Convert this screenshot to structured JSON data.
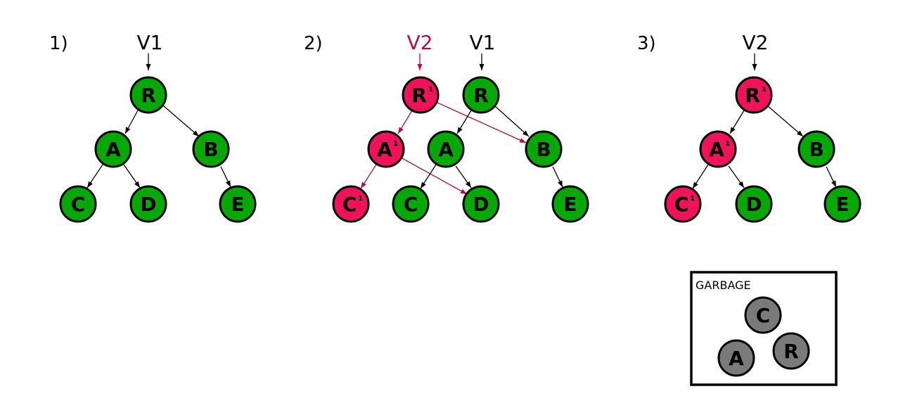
{
  "colors": {
    "green": "#06a806",
    "red": "#f0125b",
    "gray": "#7a7a7a",
    "stroke": "#000000",
    "v2_label": "#b0104a",
    "red_edge": "#b0104a"
  },
  "panels": [
    {
      "step": "1)",
      "versions": [
        {
          "label": "V1",
          "color": "black",
          "target": "R"
        }
      ],
      "nodes": [
        {
          "id": "R",
          "label": "R",
          "color": "green"
        },
        {
          "id": "A",
          "label": "A",
          "color": "green"
        },
        {
          "id": "B",
          "label": "B",
          "color": "green"
        },
        {
          "id": "C",
          "label": "C",
          "color": "green"
        },
        {
          "id": "D",
          "label": "D",
          "color": "green"
        },
        {
          "id": "E",
          "label": "E",
          "color": "green"
        }
      ],
      "edges": [
        {
          "from": "R",
          "to": "A",
          "color": "black"
        },
        {
          "from": "R",
          "to": "B",
          "color": "black"
        },
        {
          "from": "A",
          "to": "C",
          "color": "black"
        },
        {
          "from": "A",
          "to": "D",
          "color": "black"
        },
        {
          "from": "B",
          "to": "E",
          "color": "black"
        }
      ]
    },
    {
      "step": "2)",
      "versions": [
        {
          "label": "V2",
          "color": "red",
          "target": "R1"
        },
        {
          "label": "V1",
          "color": "black",
          "target": "R"
        }
      ],
      "nodes": [
        {
          "id": "R1",
          "label": "R",
          "sup": "1",
          "color": "red"
        },
        {
          "id": "R",
          "label": "R",
          "color": "green"
        },
        {
          "id": "A1",
          "label": "A",
          "sup": "1",
          "color": "red"
        },
        {
          "id": "A",
          "label": "A",
          "color": "green"
        },
        {
          "id": "B",
          "label": "B",
          "color": "green"
        },
        {
          "id": "C1",
          "label": "C",
          "sup": "1",
          "color": "red"
        },
        {
          "id": "C",
          "label": "C",
          "color": "green"
        },
        {
          "id": "D",
          "label": "D",
          "color": "green"
        },
        {
          "id": "E",
          "label": "E",
          "color": "green"
        }
      ],
      "edges": [
        {
          "from": "R1",
          "to": "A1",
          "color": "red"
        },
        {
          "from": "R1",
          "to": "B",
          "color": "red"
        },
        {
          "from": "A1",
          "to": "C1",
          "color": "red"
        },
        {
          "from": "A1",
          "to": "D",
          "color": "red"
        },
        {
          "from": "R",
          "to": "A",
          "color": "black"
        },
        {
          "from": "R",
          "to": "B",
          "color": "black"
        },
        {
          "from": "A",
          "to": "C",
          "color": "black"
        },
        {
          "from": "A",
          "to": "D",
          "color": "black"
        },
        {
          "from": "B",
          "to": "E",
          "color": "black"
        }
      ]
    },
    {
      "step": "3)",
      "versions": [
        {
          "label": "V2",
          "color": "black",
          "target": "R1"
        }
      ],
      "nodes": [
        {
          "id": "R1",
          "label": "R",
          "sup": "1",
          "color": "red"
        },
        {
          "id": "A1",
          "label": "A",
          "sup": "1",
          "color": "red"
        },
        {
          "id": "B",
          "label": "B",
          "color": "green"
        },
        {
          "id": "C1",
          "label": "C",
          "sup": "1",
          "color": "red"
        },
        {
          "id": "D",
          "label": "D",
          "color": "green"
        },
        {
          "id": "E",
          "label": "E",
          "color": "green"
        }
      ],
      "edges": [
        {
          "from": "R1",
          "to": "A1",
          "color": "black"
        },
        {
          "from": "R1",
          "to": "B",
          "color": "black"
        },
        {
          "from": "A1",
          "to": "C1",
          "color": "black"
        },
        {
          "from": "A1",
          "to": "D",
          "color": "black"
        },
        {
          "from": "B",
          "to": "E",
          "color": "black"
        }
      ]
    }
  ],
  "garbage": {
    "title": "GARBAGE",
    "nodes": [
      {
        "id": "gC",
        "label": "C",
        "color": "gray"
      },
      {
        "id": "gA",
        "label": "A",
        "color": "gray"
      },
      {
        "id": "gR",
        "label": "R",
        "color": "gray"
      }
    ]
  }
}
